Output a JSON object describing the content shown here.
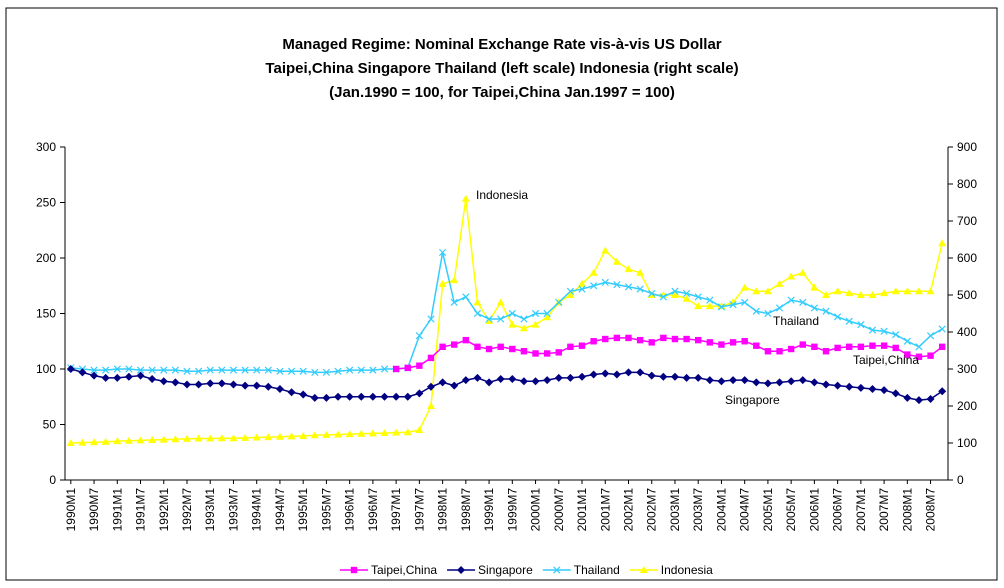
{
  "chart_data": {
    "type": "line",
    "title": [
      "Managed Regime: Nominal Exchange Rate vis-à-vis US Dollar",
      "Taipei,China Singapore Thailand (left scale) Indonesia (right scale)",
      "(Jan.1990 = 100, for Taipei,China Jan.1997 = 100)"
    ],
    "categories": [
      "1990M1",
      null,
      "1990M7",
      null,
      "1991M1",
      null,
      "1991M7",
      null,
      "1992M1",
      null,
      "1992M7",
      null,
      "1993M1",
      null,
      "1993M7",
      null,
      "1994M1",
      null,
      "1994M7",
      null,
      "1995M1",
      null,
      "1995M7",
      null,
      "1996M1",
      null,
      "1996M7",
      null,
      "1997M1",
      null,
      "1997M7",
      null,
      "1998M1",
      null,
      "1998M7",
      null,
      "1999M1",
      null,
      "1999M7",
      null,
      "2000M1",
      null,
      "2000M7",
      null,
      "2001M1",
      null,
      "2001M7",
      null,
      "2002M1",
      null,
      "2002M7",
      null,
      "2003M1",
      null,
      "2003M7",
      null,
      "2004M1",
      null,
      "2004M7",
      null,
      "2005M1",
      null,
      "2005M7",
      null,
      "2006M1",
      null,
      "2006M7",
      null,
      "2007M1",
      null,
      "2007M7",
      null,
      "2008M1",
      null,
      "2008M7",
      null
    ],
    "series": [
      {
        "name": "Taipei,China",
        "color": "#ff00ff",
        "marker": "square",
        "values": [
          null,
          null,
          null,
          null,
          null,
          null,
          null,
          null,
          null,
          null,
          null,
          null,
          null,
          null,
          null,
          null,
          null,
          null,
          null,
          null,
          null,
          null,
          null,
          null,
          null,
          null,
          null,
          null,
          100,
          101,
          103,
          110,
          120,
          122,
          126,
          120,
          118,
          120,
          118,
          116,
          114,
          114,
          115,
          120,
          121,
          125,
          127,
          128,
          128,
          126,
          124,
          128,
          127,
          127,
          126,
          124,
          122,
          124,
          125,
          121,
          116,
          116,
          118,
          122,
          120,
          116,
          119,
          120,
          120,
          121,
          121,
          119,
          113,
          111,
          112,
          120
        ]
      },
      {
        "name": "Singapore",
        "color": "#000080",
        "marker": "diamond",
        "values": [
          100,
          97,
          94,
          92,
          92,
          93,
          94,
          91,
          89,
          88,
          86,
          86,
          87,
          87,
          86,
          85,
          85,
          84,
          82,
          79,
          77,
          74,
          74,
          75,
          75,
          75,
          75,
          75,
          75,
          75,
          78,
          84,
          88,
          85,
          90,
          92,
          88,
          91,
          91,
          89,
          89,
          90,
          92,
          92,
          93,
          95,
          96,
          95,
          97,
          97,
          94,
          93,
          93,
          92,
          92,
          90,
          89,
          90,
          90,
          88,
          87,
          88,
          89,
          90,
          88,
          86,
          85,
          84,
          83,
          82,
          81,
          78,
          74,
          72,
          73,
          80
        ]
      },
      {
        "name": "Thailand",
        "color": "#33ccff",
        "marker": "x",
        "values": [
          101,
          100,
          99,
          99,
          100,
          100,
          99,
          99,
          99,
          99,
          98,
          98,
          99,
          99,
          99,
          99,
          99,
          99,
          98,
          98,
          98,
          97,
          97,
          98,
          99,
          99,
          99,
          100,
          100,
          101,
          130,
          145,
          205,
          160,
          165,
          150,
          145,
          145,
          150,
          145,
          150,
          150,
          160,
          170,
          172,
          175,
          178,
          176,
          174,
          172,
          168,
          165,
          170,
          168,
          165,
          162,
          156,
          158,
          160,
          152,
          150,
          155,
          162,
          160,
          155,
          152,
          147,
          143,
          140,
          135,
          134,
          131,
          125,
          120,
          130,
          136
        ]
      },
      {
        "name": "Indonesia",
        "color": "#ffff00",
        "marker": "triangle",
        "axis": "y2",
        "values": [
          100,
          101,
          102,
          103,
          105,
          106,
          107,
          108,
          109,
          110,
          111,
          112,
          112,
          113,
          113,
          114,
          115,
          116,
          117,
          118,
          119,
          121,
          122,
          123,
          124,
          125,
          126,
          127,
          128,
          129,
          135,
          200,
          530,
          540,
          760,
          480,
          430,
          480,
          420,
          410,
          420,
          440,
          480,
          500,
          530,
          560,
          620,
          590,
          570,
          560,
          500,
          500,
          500,
          490,
          470,
          470,
          470,
          480,
          520,
          510,
          510,
          530,
          550,
          560,
          520,
          500,
          510,
          505,
          500,
          500,
          505,
          510,
          510,
          510,
          510,
          640
        ]
      }
    ],
    "annotations": [
      "Indonesia",
      "Thailand",
      "Taipei,China",
      "Singapore"
    ],
    "ylim": [
      0,
      300
    ],
    "yticks": [
      0,
      50,
      100,
      150,
      200,
      250,
      300
    ],
    "y2lim": [
      0,
      900
    ],
    "y2ticks": [
      0,
      100,
      200,
      300,
      400,
      500,
      600,
      700,
      800,
      900
    ],
    "legend": "bottom"
  }
}
